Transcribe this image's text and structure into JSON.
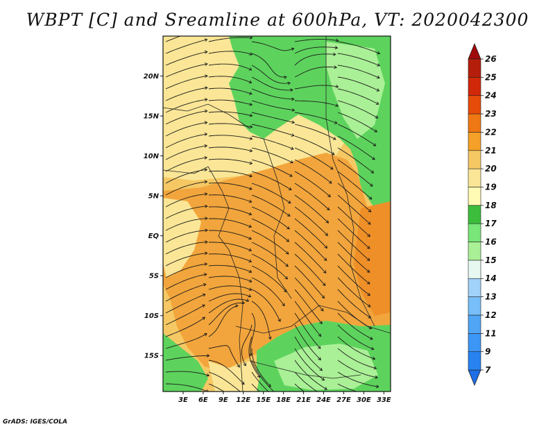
{
  "title": "WBPT [C] and Sreamline at 600hPa, VT: 2020042300",
  "footer": "GrADS: IGES/COLA",
  "lat_labels": [
    "20N",
    "15N",
    "10N",
    "5N",
    "EQ",
    "5S",
    "10S",
    "15S"
  ],
  "lat_values": [
    20,
    15,
    10,
    5,
    0,
    -5,
    -10,
    -15
  ],
  "lon_labels": [
    "3E",
    "6E",
    "9E",
    "12E",
    "15E",
    "18E",
    "21E",
    "24E",
    "27E",
    "30E",
    "33E"
  ],
  "lon_values": [
    3,
    6,
    9,
    12,
    15,
    18,
    21,
    24,
    27,
    30,
    33
  ],
  "domain": {
    "lon_min": 0,
    "lon_max": 34,
    "lat_min": -19.5,
    "lat_max": 25
  },
  "colorbar": {
    "labels": [
      "7",
      "9",
      "11",
      "12",
      "13",
      "14",
      "15",
      "16",
      "17",
      "18",
      "19",
      "20",
      "21",
      "22",
      "23",
      "24",
      "25",
      "26"
    ],
    "colors": [
      "#1e6ee6",
      "#2882f0",
      "#3c96f5",
      "#50a5f5",
      "#78bef8",
      "#a0d2fa",
      "#e6f8f0",
      "#aaf096",
      "#78e678",
      "#3cbe3c",
      "#fffab4",
      "#fae696",
      "#f5c864",
      "#f5a028",
      "#f07814",
      "#e64b0a",
      "#d2280a",
      "#b41e0a",
      "#a00a0a"
    ]
  },
  "colors": {
    "land_green": "#5dd35d",
    "orange": "#f2a53c",
    "yellow": "#fae696"
  }
}
